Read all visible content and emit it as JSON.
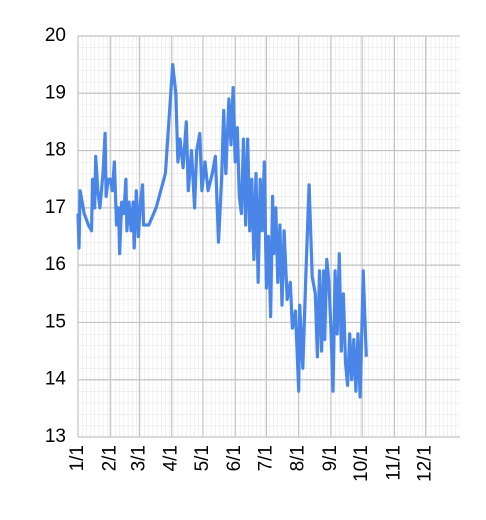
{
  "chart_data": {
    "type": "line",
    "x": [
      0,
      1,
      2,
      4,
      6,
      10,
      13,
      14,
      16,
      17,
      19,
      21,
      24,
      26,
      27,
      29,
      31,
      33,
      35,
      37,
      39,
      40,
      42,
      44,
      46,
      47,
      49,
      51,
      53,
      54,
      56,
      58,
      60,
      62,
      63,
      65,
      68,
      75,
      84,
      91,
      94,
      96,
      98,
      101,
      104,
      106,
      109,
      112,
      114,
      117,
      119,
      122,
      125,
      129,
      132,
      135,
      138,
      140,
      142,
      145,
      147,
      149,
      151,
      153,
      155,
      157,
      159,
      161,
      163,
      165,
      167,
      169,
      171,
      173,
      175,
      177,
      179,
      181,
      183,
      185,
      187,
      188,
      190,
      192,
      194,
      196,
      198,
      201,
      204,
      206,
      209,
      212,
      213,
      216,
      219,
      222,
      225,
      228,
      230,
      232,
      234,
      236,
      237,
      239,
      241,
      243,
      245,
      247,
      249,
      251,
      253,
      255,
      257,
      259,
      261,
      263,
      265,
      267,
      269,
      271,
      273,
      274,
      277
    ],
    "series": [
      {
        "color": "#4a86e8",
        "values": [
          16.9,
          16.3,
          17.3,
          17.1,
          16.9,
          16.7,
          16.6,
          17.5,
          17.0,
          17.9,
          17.3,
          17.0,
          17.6,
          18.3,
          17.2,
          17.5,
          17.5,
          17.3,
          17.8,
          16.7,
          17.0,
          16.2,
          17.1,
          16.9,
          17.5,
          16.6,
          17.1,
          16.6,
          17.1,
          16.3,
          17.3,
          16.5,
          17.1,
          17.4,
          16.7,
          16.7,
          16.7,
          17.0,
          17.6,
          19.5,
          19.0,
          17.8,
          18.2,
          17.7,
          18.5,
          17.3,
          18.0,
          17.0,
          18.0,
          18.3,
          17.3,
          17.8,
          17.3,
          17.6,
          17.9,
          16.4,
          17.5,
          18.7,
          17.6,
          18.9,
          18.1,
          19.1,
          17.8,
          18.4,
          17.2,
          16.9,
          18.2,
          16.7,
          18.2,
          16.6,
          17.5,
          16.1,
          17.6,
          15.7,
          17.5,
          16.6,
          17.8,
          15.6,
          16.5,
          15.1,
          17.2,
          16.2,
          17.0,
          15.7,
          16.7,
          15.3,
          16.6,
          15.4,
          15.7,
          14.9,
          15.2,
          13.8,
          15.3,
          14.2,
          15.9,
          17.4,
          15.8,
          15.5,
          14.4,
          15.9,
          14.5,
          15.9,
          14.7,
          16.1,
          15.7,
          14.9,
          13.8,
          15.9,
          14.8,
          16.2,
          14.5,
          15.5,
          14.3,
          13.9,
          14.8,
          14.0,
          14.7,
          13.8,
          14.8,
          13.7,
          15.1,
          15.9,
          14.4
        ]
      }
    ],
    "xlim": [
      0,
      367
    ],
    "xticks": [
      {
        "value": 0,
        "label": "1/1"
      },
      {
        "value": 31,
        "label": "2/1"
      },
      {
        "value": 59,
        "label": "3/1"
      },
      {
        "value": 90,
        "label": "4/1"
      },
      {
        "value": 120,
        "label": "5/1"
      },
      {
        "value": 151,
        "label": "6/1"
      },
      {
        "value": 181,
        "label": "7/1"
      },
      {
        "value": 212,
        "label": "8/1"
      },
      {
        "value": 243,
        "label": "9/1"
      },
      {
        "value": 273,
        "label": "10/1"
      },
      {
        "value": 304,
        "label": "11/1"
      },
      {
        "value": 334,
        "label": "12/1"
      }
    ],
    "ylim": [
      13,
      20
    ],
    "yticks": [
      13,
      14,
      15,
      16,
      17,
      18,
      19,
      20
    ],
    "grid": true
  }
}
